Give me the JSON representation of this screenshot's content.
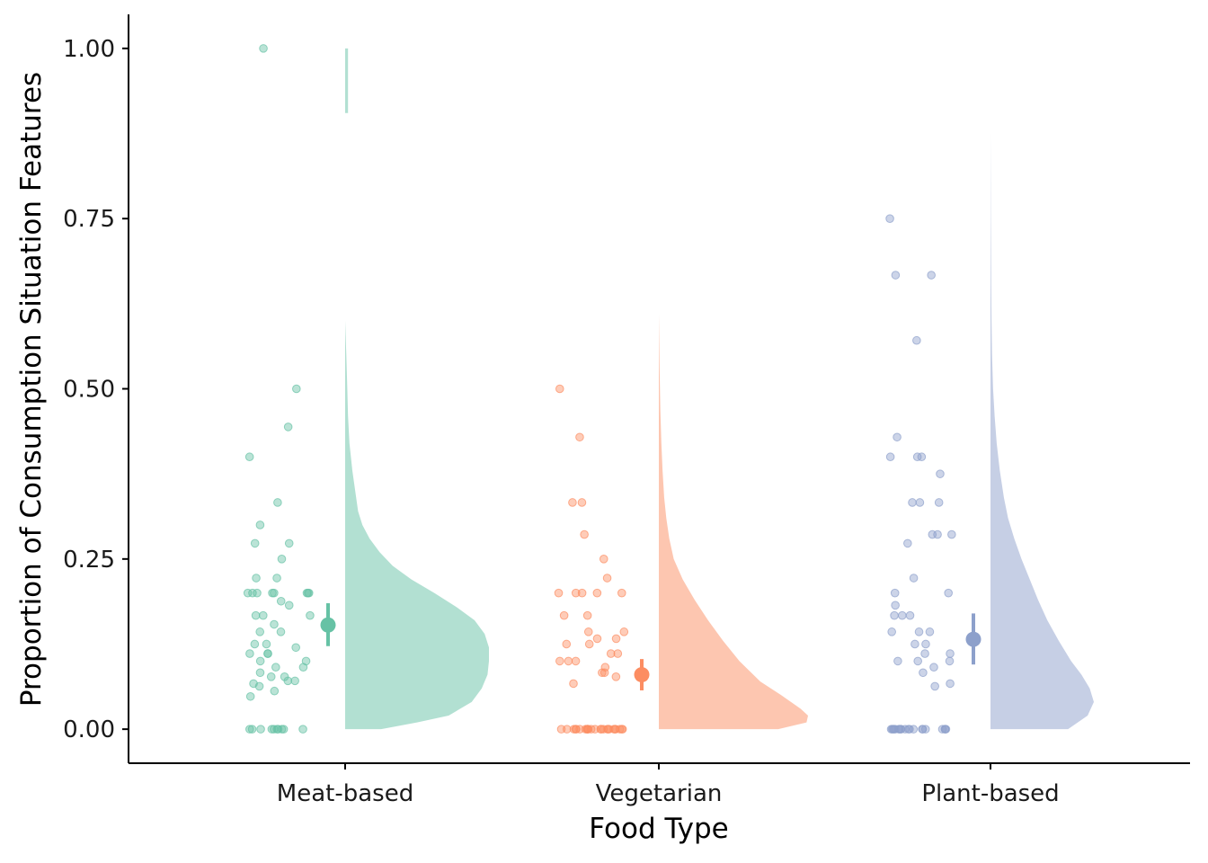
{
  "chart_data": {
    "type": "raincloud",
    "title": "",
    "xlabel": "Food Type",
    "ylabel": "Proportion of Consumption Situation Features",
    "ylim": [
      -0.05,
      1.05
    ],
    "yticks": [
      "0.00",
      "0.25",
      "0.50",
      "0.75",
      "1.00"
    ],
    "categories": [
      "Meat-based",
      "Vegetarian",
      "Plant-based"
    ],
    "grid": false,
    "legend": "none",
    "groups": [
      {
        "category": "Meat-based",
        "color": "#66c2a5",
        "mean": 0.153,
        "ci": [
          0.122,
          0.185
        ],
        "points": [
          0,
          0,
          0,
          0,
          0,
          0,
          0,
          0,
          0,
          0,
          1.0,
          0.5,
          0.444,
          0.4,
          0.333,
          0.3,
          0.273,
          0.273,
          0.25,
          0.222,
          0.222,
          0.2,
          0.2,
          0.2,
          0.2,
          0.2,
          0.2,
          0.2,
          0.2,
          0.188,
          0.182,
          0.167,
          0.167,
          0.167,
          0.154,
          0.143,
          0.143,
          0.125,
          0.125,
          0.12,
          0.111,
          0.111,
          0.111,
          0.1,
          0.1,
          0.091,
          0.091,
          0.083,
          0.077,
          0.077,
          0.071,
          0.071,
          0.067,
          0.063,
          0.056,
          0.048
        ],
        "density": [
          [
            0.0,
            0.25
          ],
          [
            0.01,
            0.5
          ],
          [
            0.02,
            0.72
          ],
          [
            0.04,
            0.88
          ],
          [
            0.06,
            0.95
          ],
          [
            0.08,
            0.99
          ],
          [
            0.1,
            1.0
          ],
          [
            0.12,
            1.0
          ],
          [
            0.14,
            0.97
          ],
          [
            0.16,
            0.9
          ],
          [
            0.18,
            0.77
          ],
          [
            0.2,
            0.62
          ],
          [
            0.22,
            0.46
          ],
          [
            0.24,
            0.33
          ],
          [
            0.26,
            0.24
          ],
          [
            0.28,
            0.17
          ],
          [
            0.3,
            0.12
          ],
          [
            0.32,
            0.09
          ],
          [
            0.35,
            0.07
          ],
          [
            0.38,
            0.05
          ],
          [
            0.42,
            0.03
          ],
          [
            0.46,
            0.02
          ],
          [
            0.5,
            0.015
          ],
          [
            0.55,
            0.008
          ],
          [
            0.6,
            0.0
          ]
        ],
        "density_extra": [
          [
            0.905,
            0.02
          ],
          [
            1.0,
            0.02
          ]
        ]
      },
      {
        "category": "Vegetarian",
        "color": "#fc8d62",
        "mean": 0.08,
        "ci": [
          0.057,
          0.103
        ],
        "points": [
          0,
          0,
          0,
          0,
          0,
          0,
          0,
          0,
          0,
          0,
          0,
          0,
          0,
          0,
          0,
          0,
          0,
          0,
          0,
          0,
          0,
          0,
          0,
          0,
          0,
          0.5,
          0.429,
          0.333,
          0.333,
          0.286,
          0.25,
          0.222,
          0.2,
          0.2,
          0.2,
          0.2,
          0.2,
          0.167,
          0.167,
          0.143,
          0.143,
          0.133,
          0.133,
          0.125,
          0.125,
          0.111,
          0.111,
          0.1,
          0.1,
          0.1,
          0.091,
          0.083,
          0.083,
          0.077,
          0.067
        ],
        "density": [
          [
            0.0,
            0.8
          ],
          [
            0.01,
            0.99
          ],
          [
            0.02,
            1.0
          ],
          [
            0.03,
            0.95
          ],
          [
            0.05,
            0.82
          ],
          [
            0.07,
            0.68
          ],
          [
            0.1,
            0.54
          ],
          [
            0.13,
            0.43
          ],
          [
            0.16,
            0.33
          ],
          [
            0.19,
            0.24
          ],
          [
            0.22,
            0.16
          ],
          [
            0.25,
            0.1
          ],
          [
            0.28,
            0.07
          ],
          [
            0.31,
            0.05
          ],
          [
            0.34,
            0.036
          ],
          [
            0.38,
            0.025
          ],
          [
            0.42,
            0.017
          ],
          [
            0.47,
            0.01
          ],
          [
            0.53,
            0.005
          ],
          [
            0.61,
            0.0
          ]
        ]
      },
      {
        "category": "Plant-based",
        "color": "#8da0cb",
        "mean": 0.132,
        "ci": [
          0.095,
          0.17
        ],
        "points": [
          0,
          0,
          0,
          0,
          0,
          0,
          0,
          0,
          0,
          0,
          0,
          0,
          0,
          0,
          0,
          0,
          0,
          0,
          0,
          0,
          0.75,
          0.667,
          0.667,
          0.571,
          0.429,
          0.4,
          0.4,
          0.4,
          0.375,
          0.333,
          0.333,
          0.333,
          0.286,
          0.286,
          0.286,
          0.273,
          0.222,
          0.2,
          0.2,
          0.182,
          0.167,
          0.167,
          0.167,
          0.143,
          0.143,
          0.143,
          0.125,
          0.125,
          0.111,
          0.111,
          0.1,
          0.1,
          0.1,
          0.091,
          0.083,
          0.067,
          0.063
        ],
        "density": [
          [
            0.0,
            0.75
          ],
          [
            0.02,
            0.94
          ],
          [
            0.04,
            1.0
          ],
          [
            0.06,
            0.96
          ],
          [
            0.08,
            0.88
          ],
          [
            0.1,
            0.78
          ],
          [
            0.13,
            0.66
          ],
          [
            0.16,
            0.55
          ],
          [
            0.19,
            0.46
          ],
          [
            0.22,
            0.38
          ],
          [
            0.25,
            0.3
          ],
          [
            0.28,
            0.23
          ],
          [
            0.31,
            0.17
          ],
          [
            0.34,
            0.13
          ],
          [
            0.38,
            0.09
          ],
          [
            0.42,
            0.06
          ],
          [
            0.46,
            0.04
          ],
          [
            0.5,
            0.025
          ],
          [
            0.55,
            0.015
          ],
          [
            0.6,
            0.01
          ],
          [
            0.65,
            0.007
          ],
          [
            0.7,
            0.005
          ],
          [
            0.75,
            0.003
          ],
          [
            0.8,
            0.002
          ],
          [
            0.875,
            0.0
          ]
        ]
      }
    ]
  }
}
